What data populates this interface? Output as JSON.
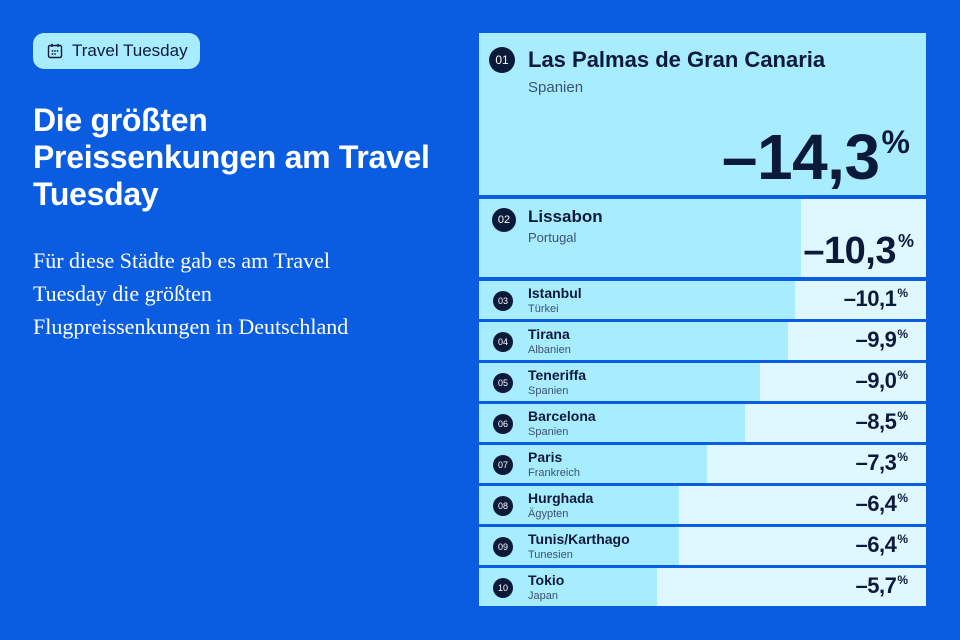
{
  "badge": {
    "label": "Travel Tuesday",
    "icon": "calendar-icon"
  },
  "headline": "Die größten Preissenkungen am Travel Tuesday",
  "subtext": "Für diese Städte gab es am Travel Tuesday die größten Flugpreissenkungen in Deutschland",
  "colors": {
    "background": "#0a5ce0",
    "bar": "#a8ecff",
    "row_track": "#dff8ff",
    "text_dark": "#0c1a3a"
  },
  "chart_data": {
    "type": "bar",
    "unit": "%",
    "rows": [
      {
        "rank": "01",
        "city": "Las Palmas de Gran Canaria",
        "country": "Spanien",
        "value": -14.3,
        "value_label": "–14,3"
      },
      {
        "rank": "02",
        "city": "Lissabon",
        "country": "Portugal",
        "value": -10.3,
        "value_label": "–10,3"
      },
      {
        "rank": "03",
        "city": "Istanbul",
        "country": "Türkei",
        "value": -10.1,
        "value_label": "–10,1"
      },
      {
        "rank": "04",
        "city": "Tirana",
        "country": "Albanien",
        "value": -9.9,
        "value_label": "–9,9"
      },
      {
        "rank": "05",
        "city": "Teneriffa",
        "country": "Spanien",
        "value": -9.0,
        "value_label": "–9,0"
      },
      {
        "rank": "06",
        "city": "Barcelona",
        "country": "Spanien",
        "value": -8.5,
        "value_label": "–8,5"
      },
      {
        "rank": "07",
        "city": "Paris",
        "country": "Frankreich",
        "value": -7.3,
        "value_label": "–7,3"
      },
      {
        "rank": "08",
        "city": "Hurghada",
        "country": "Ägypten",
        "value": -6.4,
        "value_label": "–6,4"
      },
      {
        "rank": "09",
        "city": "Tunis/Karthago",
        "country": "Tunesien",
        "value": -6.4,
        "value_label": "–6,4"
      },
      {
        "rank": "10",
        "city": "Tokio",
        "country": "Japan",
        "value": -5.7,
        "value_label": "–5,7"
      }
    ]
  }
}
